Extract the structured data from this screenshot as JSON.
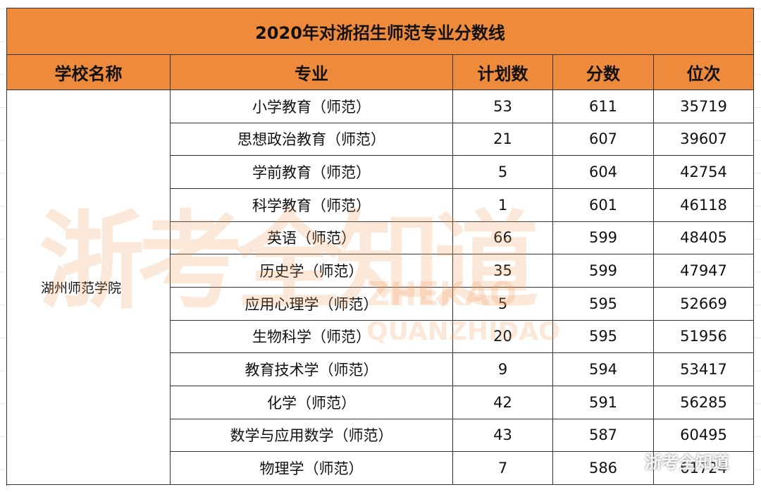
{
  "table": {
    "title": "2020年对浙招生师范专业分数线",
    "headers": [
      "学校名称",
      "专业",
      "计划数",
      "分数",
      "位次"
    ],
    "school": "湖州师范学院",
    "rows": [
      [
        "小学教育（师范）",
        53,
        611,
        35719
      ],
      [
        "思想政治教育（师范）",
        21,
        607,
        39607
      ],
      [
        "学前教育（师范）",
        5,
        604,
        42754
      ],
      [
        "科学教育（师范）",
        1,
        601,
        46118
      ],
      [
        "英语（师范）",
        66,
        599,
        48405
      ],
      [
        "历史学（师范）",
        35,
        599,
        47947
      ],
      [
        "应用心理学（师范）",
        5,
        595,
        52669
      ],
      [
        "生物科学（师范）",
        20,
        595,
        51956
      ],
      [
        "教育技术学（师范）",
        9,
        594,
        53417
      ],
      [
        "化学（师范）",
        42,
        591,
        56285
      ],
      [
        "数学与应用数学（师范）",
        43,
        587,
        60495
      ],
      [
        "物理学（师范）",
        7,
        586,
        61724
      ]
    ]
  },
  "watermark": {
    "main": "浙考全知道",
    "latin": [
      "ZHEKAO",
      "QUANZHIDAO"
    ],
    "wechat": "浙考全知道"
  }
}
